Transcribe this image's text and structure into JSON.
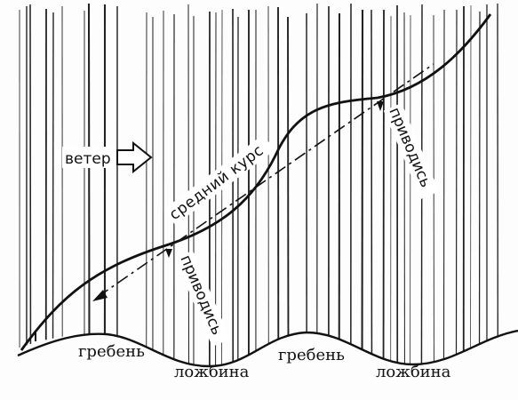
{
  "diagram": {
    "wind_label": "ветер",
    "average_course_label": "средний курс",
    "luff_label_1": "приводись",
    "luff_label_2": "приводись",
    "waves": [
      {
        "label": "гребень",
        "kind": "crest"
      },
      {
        "label": "ложбина",
        "kind": "trough"
      },
      {
        "label": "гребень",
        "kind": "crest"
      },
      {
        "label": "ложбина",
        "kind": "trough"
      }
    ],
    "colors": {
      "ink": "#111111",
      "paper": "#fdfdfd",
      "hatch": "#222222"
    }
  }
}
